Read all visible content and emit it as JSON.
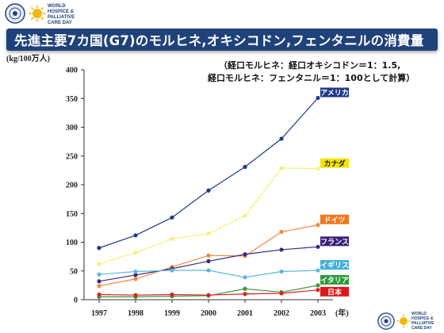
{
  "header": {
    "logo_text_lines": [
      "WORLD",
      "HOSPICE &",
      "PALLIATIVE",
      "CARE DAY"
    ],
    "title": "先進主要7カ国(G7)のモルヒネ,オキシコドン,フェンタニルの消費量"
  },
  "note": {
    "line1": "（経口モルヒネ：経口オキシコドン＝1：1.5,",
    "line2": "経口モルヒネ：フェンタニル＝1：100として計算）"
  },
  "footer": {
    "logo_text_lines": [
      "WORLD",
      "HOSPICE &",
      "PALLIATIVE",
      "CARE DAY"
    ]
  },
  "chart_data": {
    "type": "line",
    "ylabel": "(kg/100万人)",
    "xlabel": "(年)",
    "x": [
      "1997",
      "1998",
      "1999",
      "2000",
      "2001",
      "2002",
      "2003"
    ],
    "ylim": [
      0,
      400
    ],
    "yticks": [
      0,
      50,
      100,
      150,
      200,
      250,
      300,
      350,
      400
    ],
    "grid": false,
    "legend": "inline-right",
    "series": [
      {
        "name": "アメリカ",
        "color": "#1f3a8a",
        "label_color": "#1f3a8a",
        "label_text_color": "#ffffff",
        "values": [
          90,
          112,
          143,
          190,
          231,
          280,
          351
        ]
      },
      {
        "name": "カナダ",
        "color": "#f5f07a",
        "label_color": "#f5e400",
        "label_text_color": "#1a1a1a",
        "values": [
          62,
          82,
          106,
          115,
          146,
          229,
          228
        ]
      },
      {
        "name": "ドイツ",
        "color": "#f08a40",
        "label_color": "#f07820",
        "label_text_color": "#ffffff",
        "values": [
          24,
          36,
          57,
          77,
          76,
          118,
          130
        ]
      },
      {
        "name": "フランス",
        "color": "#3a2a7a",
        "label_color": "#3a1f7a",
        "label_text_color": "#ffffff",
        "values": [
          32,
          43,
          54,
          67,
          79,
          87,
          92
        ]
      },
      {
        "name": "イギリス",
        "color": "#5fb8dc",
        "label_color": "#3fb0d8",
        "label_text_color": "#ffffff",
        "values": [
          44,
          49,
          51,
          51,
          39,
          49,
          51
        ]
      },
      {
        "name": "イタリア",
        "color": "#3c9a3c",
        "label_color": "#2e9a3a",
        "label_text_color": "#ffffff",
        "values": [
          5,
          5,
          6,
          7,
          19,
          13,
          25
        ]
      },
      {
        "name": "日本",
        "color": "#e02020",
        "label_color": "#e01818",
        "label_text_color": "#ffffff",
        "values": [
          9,
          8,
          9,
          8,
          10,
          11,
          17
        ]
      }
    ]
  }
}
